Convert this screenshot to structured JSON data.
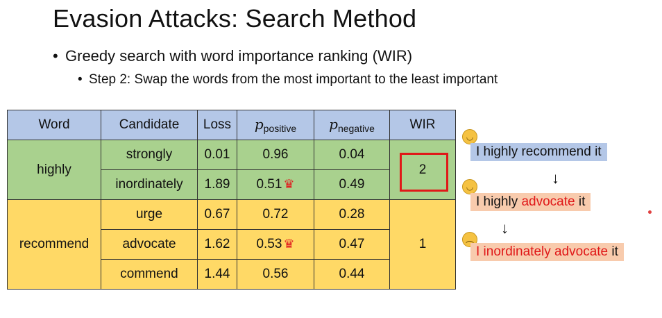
{
  "title": "Evasion Attacks: Search Method",
  "bullet1": "Greedy search with word importance ranking (WIR)",
  "bullet2": "Step 2: Swap the words from the most important to the least important",
  "table": {
    "headers": {
      "word": "Word",
      "candidate": "Candidate",
      "loss": "Loss",
      "p_symbol": "p",
      "pos_sub": "positive",
      "neg_sub": "negative",
      "wir": "WIR"
    },
    "groups": [
      {
        "word": "highly",
        "wir": "2",
        "rows": [
          {
            "candidate": "strongly",
            "loss": "0.01",
            "ppos": "0.96",
            "pneg": "0.04",
            "crown": false
          },
          {
            "candidate": "inordinately",
            "loss": "1.89",
            "ppos": "0.51",
            "pneg": "0.49",
            "crown": true
          }
        ]
      },
      {
        "word": "recommend",
        "wir": "1",
        "rows": [
          {
            "candidate": "urge",
            "loss": "0.67",
            "ppos": "0.72",
            "pneg": "0.28",
            "crown": false
          },
          {
            "candidate": "advocate",
            "loss": "1.62",
            "ppos": "0.53",
            "pneg": "0.47",
            "crown": true
          },
          {
            "candidate": "commend",
            "loss": "1.44",
            "ppos": "0.56",
            "pneg": "0.44",
            "crown": false
          }
        ]
      }
    ]
  },
  "sentences": {
    "s1": {
      "text": "I highly recommend it"
    },
    "s2": {
      "pre": "I highly ",
      "swap": "advocate",
      "post": " it"
    },
    "s3": {
      "swap": "I inordinately advocate",
      "post": " it"
    }
  },
  "colors": {
    "header": "#b4c7e7",
    "green": "#a9d18e",
    "yellow": "#ffd966",
    "highlight": "#e01818",
    "sentence_blue": "#b4c7e7",
    "sentence_peach": "#f8cbad"
  },
  "icons": {
    "crown": "crown-icon",
    "happy": "smiley-icon",
    "angry": "angry-face-icon",
    "arrow": "down-arrow-icon"
  }
}
